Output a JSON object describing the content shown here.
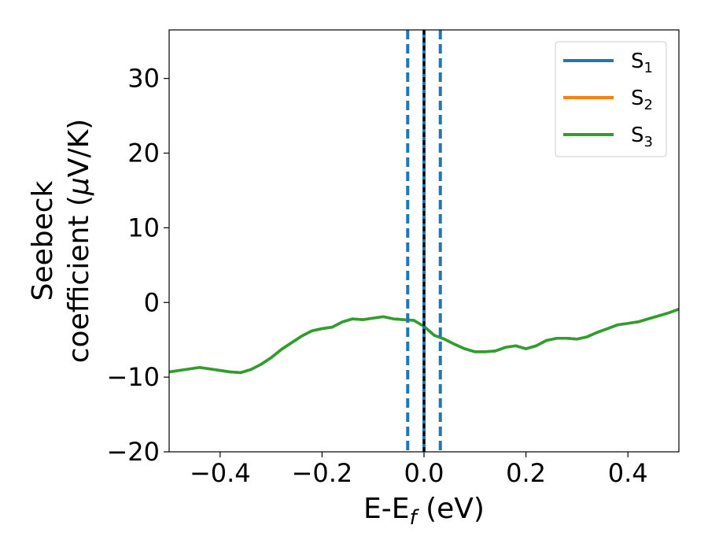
{
  "chart_data": {
    "type": "line",
    "xlabel": "E-E",
    "xlabel_sub": "f",
    "xlabel_unit": " (eV)",
    "ylabel_line1": "Seebeck",
    "ylabel_line2_prefix": "coefficient  (",
    "ylabel_mu": "μ",
    "ylabel_line2_suffix": "V/K)",
    "xlim": [
      -0.5,
      0.5
    ],
    "ylim": [
      -20,
      36.5
    ],
    "xticks": [
      -0.4,
      -0.2,
      0.0,
      0.2,
      0.4
    ],
    "xtick_labels": [
      "−0.4",
      "−0.2",
      "0.0",
      "0.2",
      "0.4"
    ],
    "yticks": [
      -20,
      -10,
      0,
      10,
      20,
      30
    ],
    "ytick_labels": [
      "−20",
      "−10",
      "0",
      "10",
      "20",
      "30"
    ],
    "grid": false,
    "legend_position": "top-right",
    "series": [
      {
        "name": "S",
        "subscript": "1",
        "color": "#1f77b4",
        "x": [
          -0.5,
          -0.46,
          -0.44,
          -0.42,
          -0.4,
          -0.38,
          -0.36,
          -0.34,
          -0.32,
          -0.3,
          -0.28,
          -0.26,
          -0.24,
          -0.22,
          -0.2,
          -0.18,
          -0.16,
          -0.14,
          -0.12,
          -0.1,
          -0.08,
          -0.06,
          -0.04,
          -0.02,
          0.0,
          0.02,
          0.04,
          0.06,
          0.08,
          0.1,
          0.12,
          0.14,
          0.16,
          0.18,
          0.2,
          0.22,
          0.24,
          0.26,
          0.28,
          0.3,
          0.32,
          0.34,
          0.36,
          0.38,
          0.4,
          0.42,
          0.44,
          0.46,
          0.48,
          0.5
        ],
        "y": [
          -9.3,
          -8.9,
          -8.7,
          -8.9,
          -9.1,
          -9.3,
          -9.4,
          -9.0,
          -8.3,
          -7.4,
          -6.3,
          -5.4,
          -4.5,
          -3.8,
          -3.5,
          -3.3,
          -2.6,
          -2.2,
          -2.3,
          -2.1,
          -1.9,
          -2.2,
          -2.3,
          -2.4,
          -3.2,
          -4.4,
          -4.9,
          -5.6,
          -6.2,
          -6.6,
          -6.6,
          -6.5,
          -6.0,
          -5.8,
          -6.2,
          -5.8,
          -5.1,
          -4.8,
          -4.8,
          -4.9,
          -4.6,
          -4.0,
          -3.5,
          -3.0,
          -2.8,
          -2.6,
          -2.2,
          -1.8,
          -1.4,
          -0.9
        ]
      },
      {
        "name": "S",
        "subscript": "2",
        "color": "#ff7f0e",
        "x": [
          -0.5,
          -0.46,
          -0.44,
          -0.42,
          -0.4,
          -0.38,
          -0.36,
          -0.34,
          -0.32,
          -0.3,
          -0.28,
          -0.26,
          -0.24,
          -0.22,
          -0.2,
          -0.18,
          -0.16,
          -0.14,
          -0.12,
          -0.1,
          -0.08,
          -0.06,
          -0.04,
          -0.02,
          0.0,
          0.02,
          0.04,
          0.06,
          0.08,
          0.1,
          0.12,
          0.14,
          0.16,
          0.18,
          0.2,
          0.22,
          0.24,
          0.26,
          0.28,
          0.3,
          0.32,
          0.34,
          0.36,
          0.38,
          0.4,
          0.42,
          0.44,
          0.46,
          0.48,
          0.5
        ],
        "y": [
          -9.3,
          -8.9,
          -8.7,
          -8.9,
          -9.1,
          -9.3,
          -9.4,
          -9.0,
          -8.3,
          -7.4,
          -6.3,
          -5.4,
          -4.5,
          -3.8,
          -3.5,
          -3.3,
          -2.6,
          -2.2,
          -2.3,
          -2.1,
          -1.9,
          -2.2,
          -2.3,
          -2.4,
          -3.2,
          -4.4,
          -4.9,
          -5.6,
          -6.2,
          -6.6,
          -6.6,
          -6.5,
          -6.0,
          -5.8,
          -6.2,
          -5.8,
          -5.1,
          -4.8,
          -4.8,
          -4.9,
          -4.6,
          -4.0,
          -3.5,
          -3.0,
          -2.8,
          -2.6,
          -2.2,
          -1.8,
          -1.4,
          -0.9
        ]
      },
      {
        "name": "S",
        "subscript": "3",
        "color": "#2ca02c",
        "x": [
          -0.5,
          -0.46,
          -0.44,
          -0.42,
          -0.4,
          -0.38,
          -0.36,
          -0.34,
          -0.32,
          -0.3,
          -0.28,
          -0.26,
          -0.24,
          -0.22,
          -0.2,
          -0.18,
          -0.16,
          -0.14,
          -0.12,
          -0.1,
          -0.08,
          -0.06,
          -0.04,
          -0.02,
          0.0,
          0.02,
          0.04,
          0.06,
          0.08,
          0.1,
          0.12,
          0.14,
          0.16,
          0.18,
          0.2,
          0.22,
          0.24,
          0.26,
          0.28,
          0.3,
          0.32,
          0.34,
          0.36,
          0.38,
          0.4,
          0.42,
          0.44,
          0.46,
          0.48,
          0.5
        ],
        "y": [
          -9.3,
          -8.9,
          -8.7,
          -8.9,
          -9.1,
          -9.3,
          -9.4,
          -9.0,
          -8.3,
          -7.4,
          -6.3,
          -5.4,
          -4.5,
          -3.8,
          -3.5,
          -3.3,
          -2.6,
          -2.2,
          -2.3,
          -2.1,
          -1.9,
          -2.2,
          -2.3,
          -2.4,
          -3.2,
          -4.4,
          -4.9,
          -5.6,
          -6.2,
          -6.6,
          -6.6,
          -6.5,
          -6.0,
          -5.8,
          -6.2,
          -5.8,
          -5.1,
          -4.8,
          -4.8,
          -4.9,
          -4.6,
          -4.0,
          -3.5,
          -3.0,
          -2.8,
          -2.6,
          -2.2,
          -1.8,
          -1.4,
          -0.9
        ]
      }
    ],
    "vertical_lines": [
      {
        "x": -0.032,
        "style": "dashed",
        "color": "#1f77b4"
      },
      {
        "x": 0.032,
        "style": "dashed",
        "color": "#1f77b4"
      },
      {
        "x": 0.0,
        "style": "solid",
        "color": "#1f77b4"
      },
      {
        "x": 0.0,
        "style": "dashed",
        "color": "#000000"
      }
    ]
  }
}
